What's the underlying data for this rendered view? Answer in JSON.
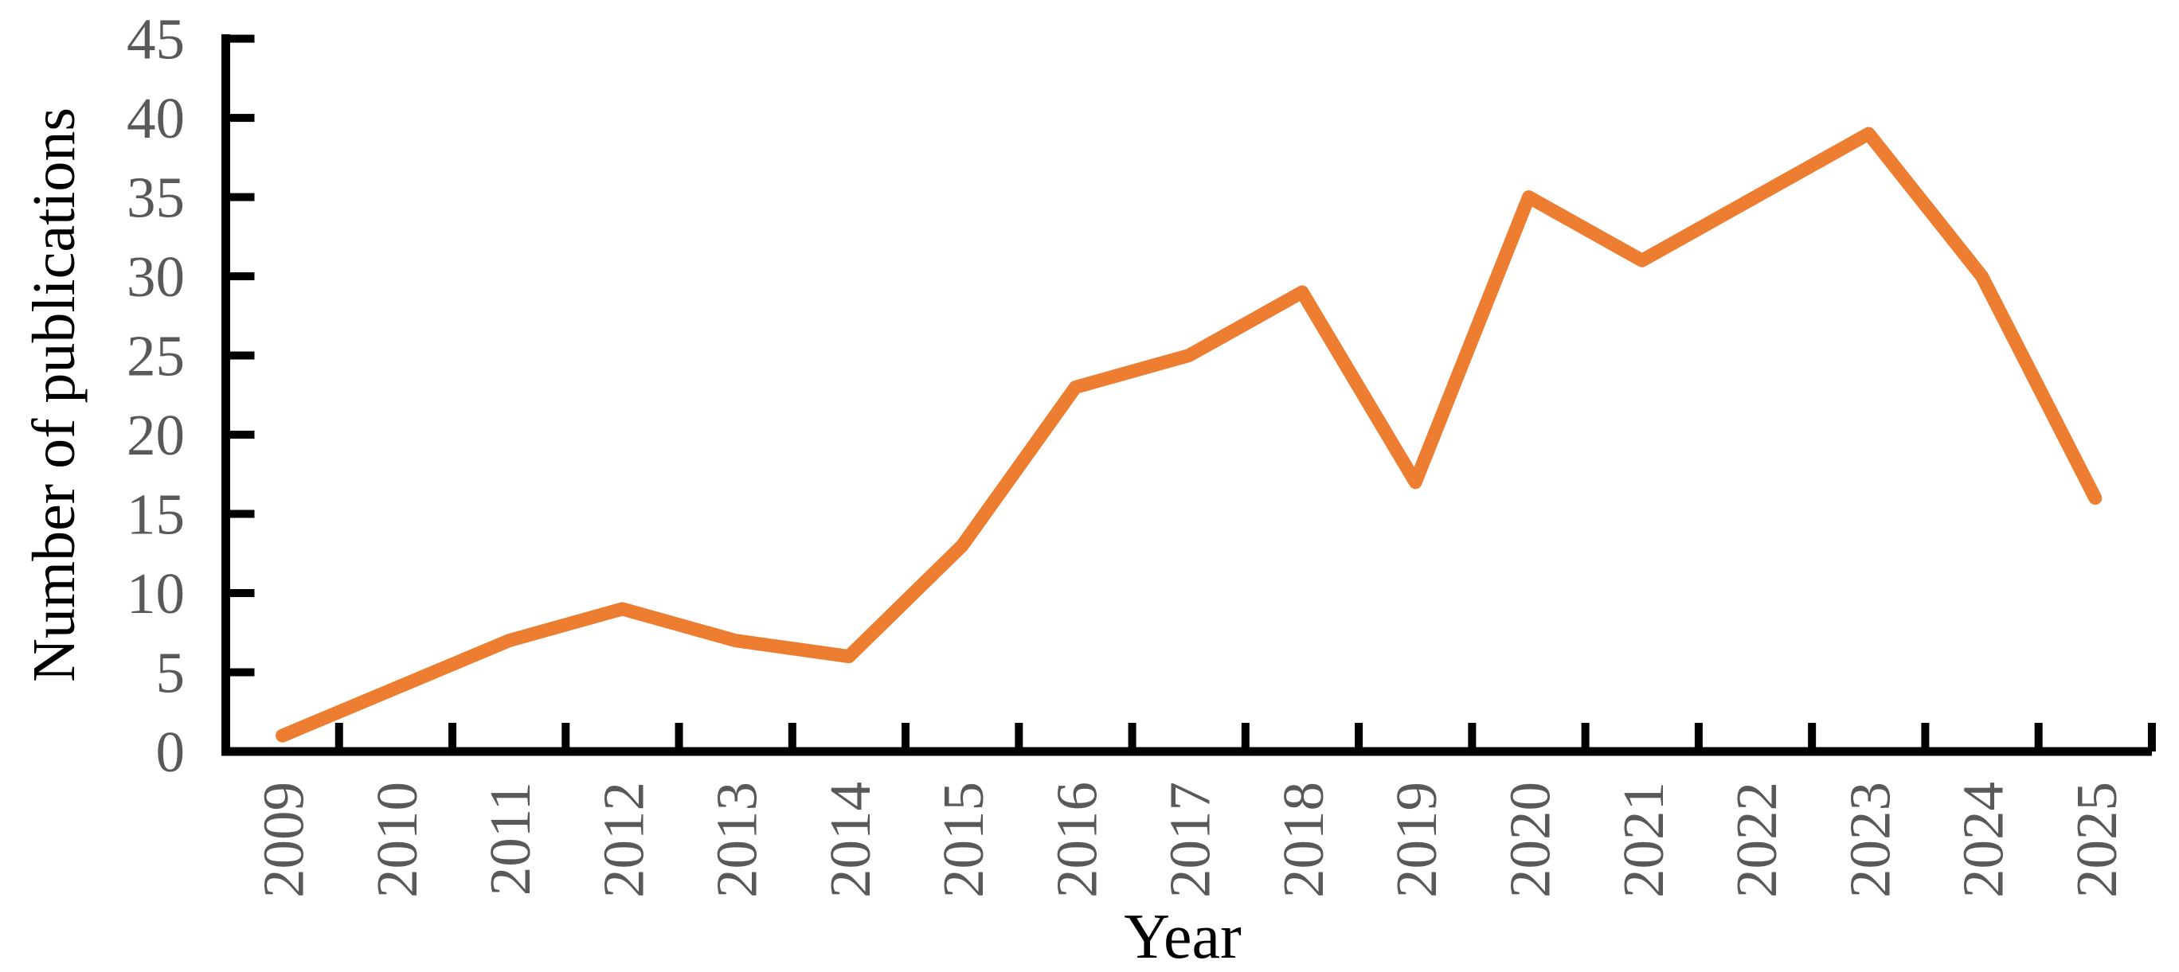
{
  "chart_data": {
    "type": "line",
    "title": "",
    "xlabel": "Year",
    "ylabel": "Number of publications",
    "categories": [
      "2009",
      "2010",
      "2011",
      "2012",
      "2013",
      "2014",
      "2015",
      "2016",
      "2017",
      "2018",
      "2019",
      "2020",
      "2021",
      "2022",
      "2023",
      "2024",
      "2025"
    ],
    "series": [
      {
        "color": "#ED7D31",
        "values": [
          1,
          4,
          7,
          9,
          7,
          6,
          13,
          23,
          25,
          29,
          17,
          35,
          31,
          35,
          39,
          30,
          16
        ]
      }
    ],
    "ylim": [
      0,
      45
    ],
    "y_ticks": [
      0,
      5,
      10,
      15,
      20,
      25,
      30,
      35,
      40,
      45
    ],
    "grid": false,
    "legend": "none",
    "colors": {
      "axis": "#000000",
      "tick_label": "#595959",
      "axis_title": "#000000",
      "background": "#ffffff"
    }
  }
}
